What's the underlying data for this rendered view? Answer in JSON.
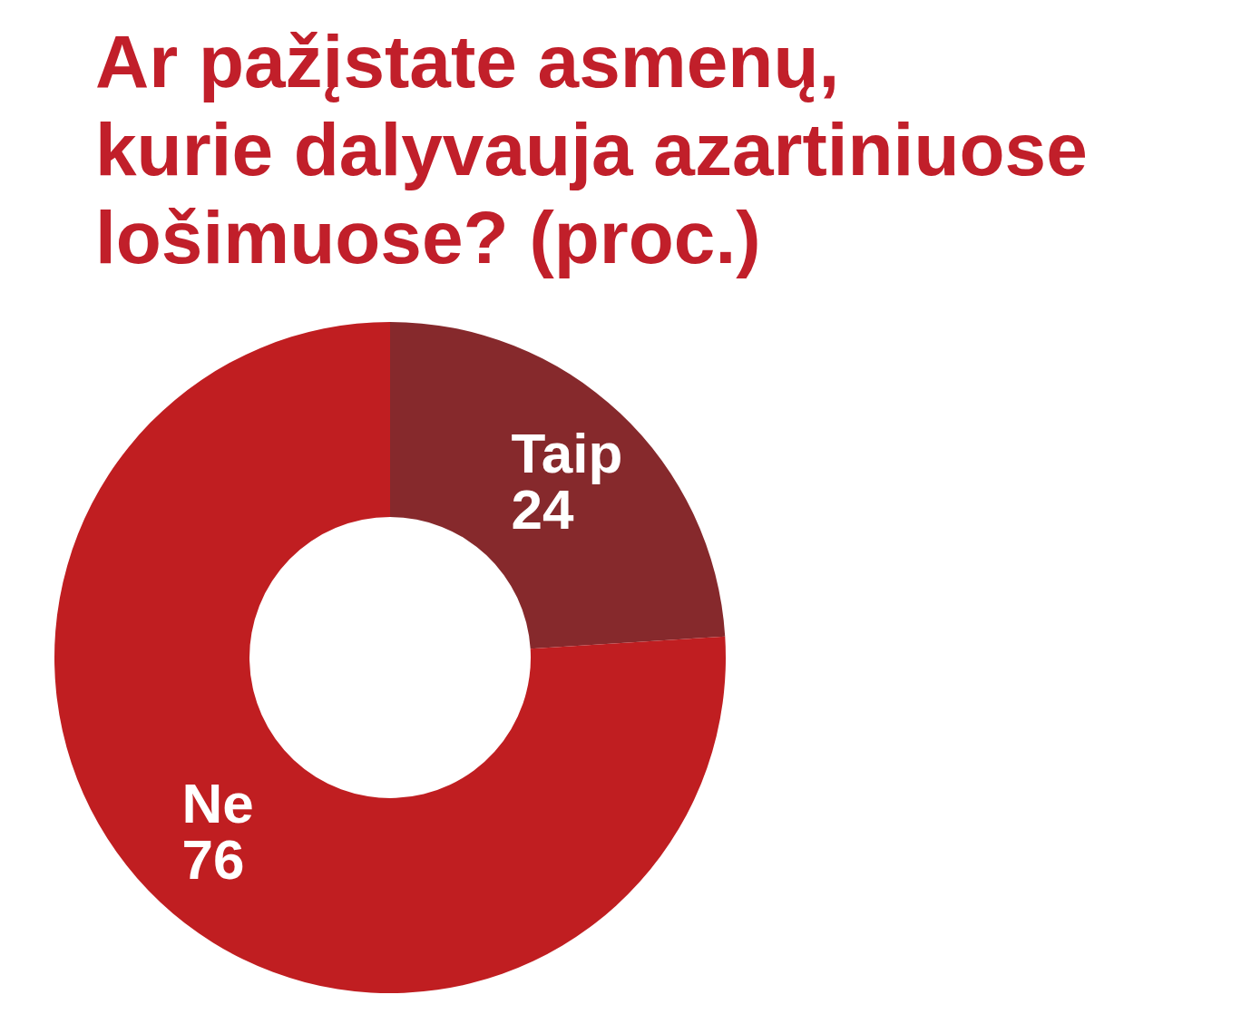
{
  "chart_data": {
    "type": "donut",
    "title": "Ar pažįstate asmenų,\nkurie dalyvauja azartiniuose\nlošimuose? (proc.)",
    "categories": [
      "Taip",
      "Ne"
    ],
    "values": [
      24,
      76
    ],
    "colors": [
      "#86292c",
      "#c01e21"
    ],
    "data_labels": true
  }
}
